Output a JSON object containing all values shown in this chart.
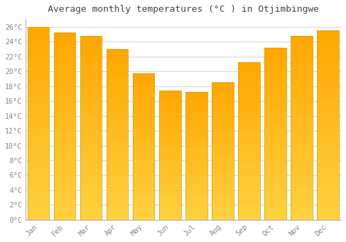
{
  "title": "Average monthly temperatures (°C ) in Otjimbingwe",
  "months": [
    "Jan",
    "Feb",
    "Mar",
    "Apr",
    "May",
    "Jun",
    "Jul",
    "Aug",
    "Sep",
    "Oct",
    "Nov",
    "Dec"
  ],
  "values": [
    26.0,
    25.2,
    24.8,
    23.0,
    19.7,
    17.4,
    17.2,
    18.5,
    21.2,
    23.2,
    24.8,
    25.5
  ],
  "bar_color_top": "#FFA500",
  "bar_color_bottom": "#FFD060",
  "bar_edge_color": "#CCA000",
  "background_color": "#FFFFFF",
  "plot_bg_color": "#FFFFFF",
  "grid_color": "#CCCCCC",
  "ylim": [
    0,
    27
  ],
  "ytick_step": 2,
  "title_fontsize": 9.5,
  "tick_fontsize": 7.5,
  "font_family": "monospace",
  "title_color": "#444444",
  "tick_color": "#888888",
  "spine_color": "#999999"
}
